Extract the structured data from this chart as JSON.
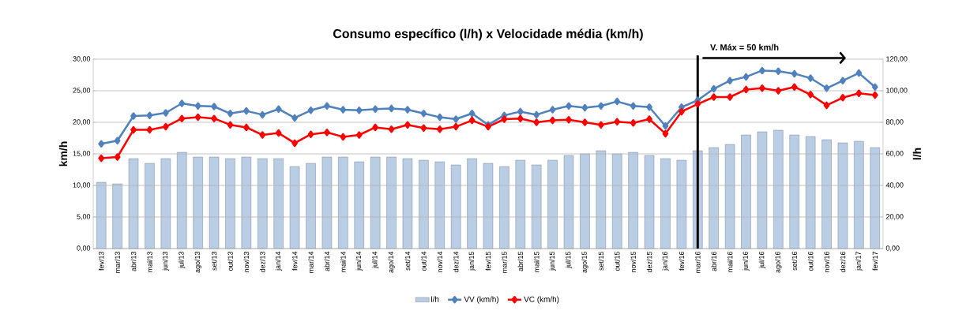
{
  "chart_data": {
    "type": "bar",
    "title": "Consumo específico (l/h) x Velocidade média (km/h)",
    "ylabel": "km/h",
    "y2label": "l/h",
    "categories": [
      "fev/13",
      "mar/13",
      "abr/13",
      "mai/13",
      "jun/13",
      "jul/13",
      "ago/13",
      "set/13",
      "out/13",
      "nov/13",
      "dez/13",
      "jan/14",
      "fev/14",
      "mar/14",
      "abr/14",
      "mai/14",
      "jun/14",
      "jul/14",
      "ago/14",
      "set/14",
      "out/14",
      "nov/14",
      "dez/14",
      "jan/15",
      "fev/15",
      "mar/15",
      "abr/15",
      "mai/15",
      "jun/15",
      "jul/15",
      "ago/15",
      "set/15",
      "out/15",
      "nov/15",
      "dez/15",
      "jan/16",
      "fev/16",
      "mar/16",
      "abr/16",
      "mai/16",
      "jun/16",
      "jul/16",
      "ago/16",
      "set/16",
      "out/16",
      "nov/16",
      "dez/16",
      "jan/17",
      "fev/17"
    ],
    "series": [
      {
        "name": "l/h",
        "axis": "y2",
        "color": "#b9cde5",
        "values": [
          42,
          41,
          57,
          54,
          57,
          61,
          58,
          58,
          57,
          58,
          57,
          57,
          52,
          54,
          58,
          58,
          55,
          58,
          58,
          57,
          56,
          55,
          53,
          57,
          54,
          52,
          56,
          53,
          56,
          59,
          60,
          62,
          60,
          61,
          59,
          57,
          56,
          62,
          64,
          66,
          72,
          74,
          75,
          72,
          71,
          69,
          67,
          68,
          64
        ]
      },
      {
        "name": "VV (km/h)",
        "type": "line",
        "color": "#4f81bd",
        "values": [
          16.6,
          17.1,
          21.0,
          21.1,
          21.5,
          23.0,
          22.6,
          22.5,
          21.4,
          21.8,
          21.2,
          22.1,
          20.7,
          21.9,
          22.6,
          22.0,
          21.9,
          22.1,
          22.2,
          22.0,
          21.4,
          20.8,
          20.5,
          21.4,
          19.6,
          21.1,
          21.7,
          21.2,
          22.0,
          22.6,
          22.3,
          22.6,
          23.3,
          22.6,
          22.4,
          19.4,
          22.4,
          23.5,
          25.3,
          26.6,
          27.2,
          28.2,
          28.1,
          27.7,
          27.0,
          25.4,
          26.6,
          27.8,
          25.6
        ]
      },
      {
        "name": "VC (km/h)",
        "type": "line",
        "color": "#ff0000",
        "values": [
          14.3,
          14.5,
          18.8,
          18.8,
          19.3,
          20.6,
          20.8,
          20.6,
          19.6,
          19.2,
          18.0,
          18.3,
          16.7,
          18.1,
          18.4,
          17.7,
          18.0,
          19.2,
          18.9,
          19.6,
          19.1,
          18.9,
          19.3,
          20.3,
          19.3,
          20.5,
          20.6,
          20.0,
          20.3,
          20.4,
          20.0,
          19.6,
          20.1,
          19.9,
          20.5,
          18.2,
          21.7,
          22.9,
          24.0,
          24.0,
          25.2,
          25.4,
          25.0,
          25.6,
          24.4,
          22.7,
          23.9,
          24.6,
          24.3
        ]
      }
    ],
    "ylim": [
      0,
      30
    ],
    "yticks": [
      {
        "value": 0,
        "label": "0,00"
      },
      {
        "value": 5,
        "label": "5,00"
      },
      {
        "value": 10,
        "label": "10,00"
      },
      {
        "value": 15,
        "label": "15,00"
      },
      {
        "value": 20,
        "label": "20,00"
      },
      {
        "value": 25,
        "label": "25,00"
      },
      {
        "value": 30,
        "label": "30,00"
      }
    ],
    "y2lim": [
      0,
      120
    ],
    "y2ticks": [
      {
        "value": 0,
        "label": "0,00"
      },
      {
        "value": 20,
        "label": "20,00"
      },
      {
        "value": 40,
        "label": "40,00"
      },
      {
        "value": 60,
        "label": "60,00"
      },
      {
        "value": 80,
        "label": "80,00"
      },
      {
        "value": 100,
        "label": "100,00"
      },
      {
        "value": 120,
        "label": "120,00"
      }
    ],
    "ref_lines": [
      {
        "axis": "x",
        "value": "mar/16",
        "label": "V. Máx = 50 km/h",
        "color": "#000000"
      }
    ],
    "grid": "y",
    "legend": "bottom",
    "marker": "diamond",
    "line_style": "solid"
  }
}
